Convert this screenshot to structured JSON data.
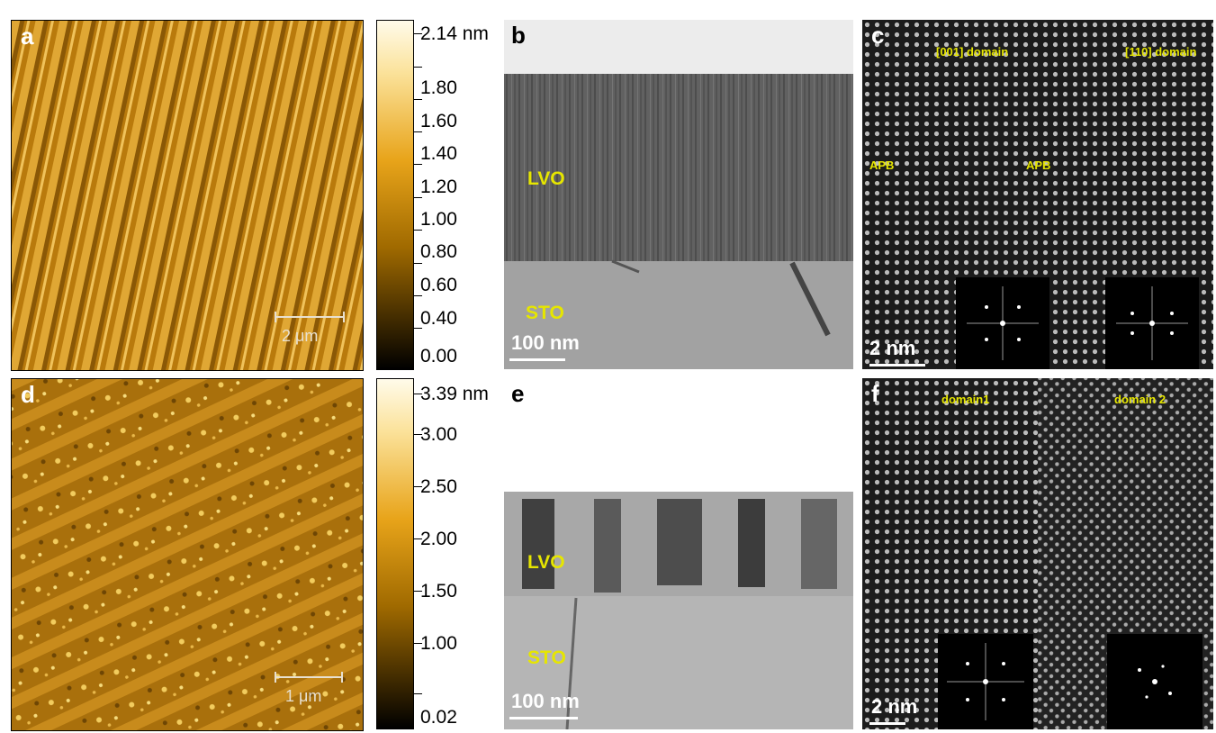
{
  "panels": {
    "a": {
      "label": "a",
      "scale": "2 μm"
    },
    "b": {
      "label": "b",
      "scale": "100 nm",
      "layer_top": "LVO",
      "layer_bottom": "STO"
    },
    "c": {
      "label": "c",
      "scale": "2 nm",
      "domain_left": "[001] domain",
      "domain_right": "[110] domain",
      "apb_left": "APB",
      "apb_right": "APB"
    },
    "d": {
      "label": "d",
      "scale": "1 μm"
    },
    "e": {
      "label": "e",
      "scale": "100 nm",
      "layer_top": "LVO",
      "layer_bottom": "STO"
    },
    "f": {
      "label": "f",
      "scale": "2 nm",
      "domain_left": "domain1",
      "domain_right": "domain 2"
    }
  },
  "colorbar_top": {
    "ticks": [
      "2.14 nm",
      "1.80",
      "1.60",
      "1.40",
      "1.20",
      "1.00",
      "0.80",
      "0.60",
      "0.40",
      "0.00"
    ]
  },
  "colorbar_bottom": {
    "ticks": [
      "3.39 nm",
      "3.00",
      "2.50",
      "2.00",
      "1.50",
      "1.00",
      "0.02"
    ]
  },
  "colors": {
    "afm": "#c88a10",
    "label_yellow": "#e6e600"
  }
}
